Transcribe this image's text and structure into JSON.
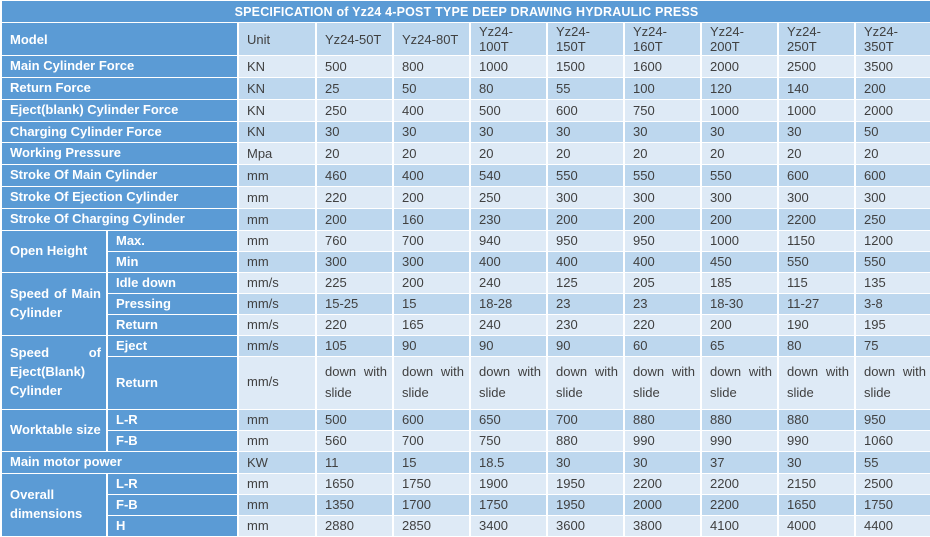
{
  "title": "SPECIFICATION of Yz24 4-POST TYPE DEEP DRAWING HYDRAULIC PRESS",
  "colors": {
    "header_blue": "#5B9BD5",
    "stripe_light": "#DEEAF6",
    "stripe_medium": "#BDD7EE",
    "data_text": "#404040",
    "border_white": "#FFFFFF"
  },
  "header": {
    "model_label": "Model",
    "unit_label": "Unit",
    "models": [
      "Yz24-50T",
      "Yz24-80T",
      "Yz24-100T",
      "Yz24-150T",
      "Yz24-160T",
      "Yz24-200T",
      "Yz24-250T",
      "Yz24-350T"
    ]
  },
  "sections": [
    {
      "label": "Main Cylinder Force",
      "rows": [
        {
          "sub": null,
          "unit": "KN",
          "values": [
            "500",
            "800",
            "1000",
            "1500",
            "1600",
            "2000",
            "2500",
            "3500"
          ]
        }
      ]
    },
    {
      "label": "Return Force",
      "rows": [
        {
          "sub": null,
          "unit": "KN",
          "values": [
            "25",
            "50",
            "80",
            "55",
            "100",
            "120",
            "140",
            "200"
          ]
        }
      ]
    },
    {
      "label": "Eject(blank) Cylinder Force",
      "rows": [
        {
          "sub": null,
          "unit": "KN",
          "values": [
            "250",
            "400",
            "500",
            "600",
            "750",
            "1000",
            "1000",
            "2000"
          ]
        }
      ]
    },
    {
      "label": "Charging Cylinder Force",
      "rows": [
        {
          "sub": null,
          "unit": "KN",
          "values": [
            "30",
            "30",
            "30",
            "30",
            "30",
            "30",
            "30",
            "50"
          ]
        }
      ]
    },
    {
      "label": "Working Pressure",
      "rows": [
        {
          "sub": null,
          "unit": "Mpa",
          "values": [
            "20",
            "20",
            "20",
            "20",
            "20",
            "20",
            "20",
            "20"
          ]
        }
      ]
    },
    {
      "label": "Stroke Of Main Cylinder",
      "rows": [
        {
          "sub": null,
          "unit": "mm",
          "values": [
            "460",
            "400",
            "540",
            "550",
            "550",
            "550",
            "600",
            "600"
          ]
        }
      ]
    },
    {
      "label": "Stroke Of Ejection Cylinder",
      "rows": [
        {
          "sub": null,
          "unit": "mm",
          "values": [
            "220",
            "200",
            "250",
            "300",
            "300",
            "300",
            "300",
            "300"
          ]
        }
      ]
    },
    {
      "label": "Stroke Of Charging Cylinder",
      "rows": [
        {
          "sub": null,
          "unit": "mm",
          "values": [
            "200",
            "160",
            "230",
            "200",
            "200",
            "200",
            "2200",
            "250"
          ]
        }
      ]
    },
    {
      "label": "Open Height",
      "rows": [
        {
          "sub": "Max.",
          "unit": "mm",
          "values": [
            "760",
            "700",
            "940",
            "950",
            "950",
            "1000",
            "1150",
            "1200"
          ]
        },
        {
          "sub": "Min",
          "unit": "mm",
          "values": [
            "300",
            "300",
            "400",
            "400",
            "400",
            "450",
            "550",
            "550"
          ]
        }
      ]
    },
    {
      "label": "Speed of Main Cylinder",
      "rows": [
        {
          "sub": "Idle down",
          "unit": "mm/s",
          "values": [
            "225",
            "200",
            "240",
            "125",
            "205",
            "185",
            "115",
            "135"
          ]
        },
        {
          "sub": "Pressing",
          "unit": "mm/s",
          "values": [
            "15-25",
            "15",
            "18-28",
            "23",
            "23",
            "18-30",
            "11-27",
            "3-8"
          ]
        },
        {
          "sub": "Return",
          "unit": "mm/s",
          "values": [
            "220",
            "165",
            "240",
            "230",
            "220",
            "200",
            "190",
            "195"
          ]
        }
      ]
    },
    {
      "label": "Speed of Eject(Blank) Cylinder",
      "rows": [
        {
          "sub": "Eject",
          "unit": "mm/s",
          "values": [
            "105",
            "90",
            "90",
            "90",
            "60",
            "65",
            "80",
            "75"
          ]
        },
        {
          "sub": "Return",
          "unit": "mm/s",
          "tall": true,
          "values": [
            "down with slide",
            "down with slide",
            "down with slide",
            "down with slide",
            "down with slide",
            "down with slide",
            "down with slide",
            "down with slide"
          ]
        }
      ]
    },
    {
      "label": "Worktable size",
      "rows": [
        {
          "sub": "L-R",
          "unit": "mm",
          "values": [
            "500",
            "600",
            "650",
            "700",
            "880",
            "880",
            "880",
            "950"
          ]
        },
        {
          "sub": "F-B",
          "unit": "mm",
          "values": [
            "560",
            "700",
            "750",
            "880",
            "990",
            "990",
            "990",
            "1060"
          ]
        }
      ]
    },
    {
      "label": "Main motor power",
      "rows": [
        {
          "sub": null,
          "unit": "KW",
          "values": [
            "11",
            "15",
            "18.5",
            "30",
            "30",
            "37",
            "30",
            "55"
          ]
        }
      ]
    },
    {
      "label": "Overall dimensions",
      "rows": [
        {
          "sub": "L-R",
          "unit": "mm",
          "values": [
            "1650",
            "1750",
            "1900",
            "1950",
            "2200",
            "2200",
            "2150",
            "2500"
          ]
        },
        {
          "sub": "F-B",
          "unit": "mm",
          "values": [
            "1350",
            "1700",
            "1750",
            "1950",
            "2000",
            "2200",
            "1650",
            "1750"
          ]
        },
        {
          "sub": "H",
          "unit": "mm",
          "values": [
            "2880",
            "2850",
            "3400",
            "3600",
            "3800",
            "4100",
            "4000",
            "4400"
          ]
        }
      ]
    }
  ]
}
